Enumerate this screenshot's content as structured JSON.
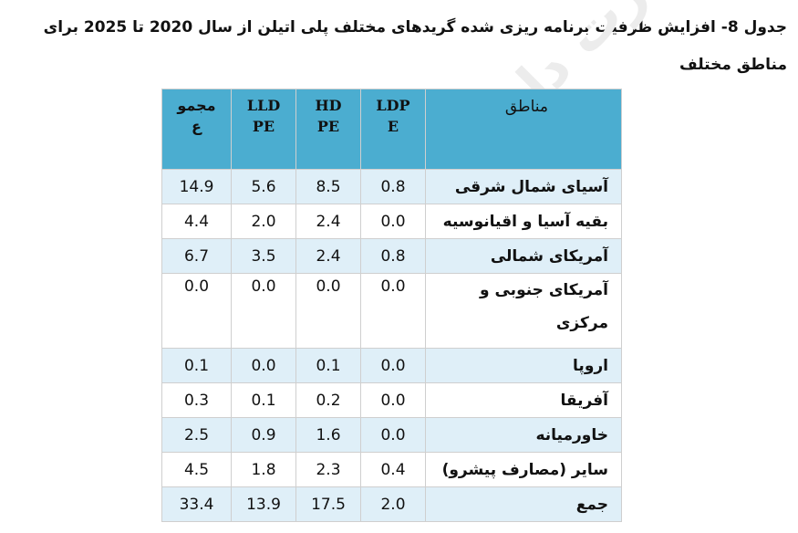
{
  "caption": "جدول 8- افزایش ظرفیت برنامه ریزی شده گریدهای مختلف پلی اتیلن از سال 2020 تا 2025 برای مناطق مختلف",
  "watermark": "ناسیدرت دانش...",
  "table": {
    "headers": {
      "region": "مناطق",
      "ldpe": "LDPE",
      "hdpe": "HDPE",
      "lldpe": "LLDPE",
      "total": "مجموع"
    },
    "rows": [
      {
        "region": "آسیای شمال شرقی",
        "ldpe": "0.8",
        "hdpe": "8.5",
        "lldpe": "5.6",
        "total": "14.9"
      },
      {
        "region": "بقیه آسیا و اقیانوسیه",
        "ldpe": "0.0",
        "hdpe": "2.4",
        "lldpe": "2.0",
        "total": "4.4"
      },
      {
        "region": "آمریکای شمالی",
        "ldpe": "0.8",
        "hdpe": "2.4",
        "lldpe": "3.5",
        "total": "6.7"
      },
      {
        "region": "آمریکای جنوبی و مرکزی",
        "ldpe": "0.0",
        "hdpe": "0.0",
        "lldpe": "0.0",
        "total": "0.0"
      },
      {
        "region": "اروپا",
        "ldpe": "0.0",
        "hdpe": "0.1",
        "lldpe": "0.0",
        "total": "0.1"
      },
      {
        "region": "آفریقا",
        "ldpe": "0.0",
        "hdpe": "0.2",
        "lldpe": "0.1",
        "total": "0.3"
      },
      {
        "region": "خاورمیانه",
        "ldpe": "0.0",
        "hdpe": "1.6",
        "lldpe": "0.9",
        "total": "2.5"
      },
      {
        "region": "سایر (مصارف پیشرو)",
        "ldpe": "0.4",
        "hdpe": "2.3",
        "lldpe": "1.8",
        "total": "4.5"
      },
      {
        "region": "جمع",
        "ldpe": "2.0",
        "hdpe": "17.5",
        "lldpe": "13.9",
        "total": "33.4"
      }
    ]
  }
}
